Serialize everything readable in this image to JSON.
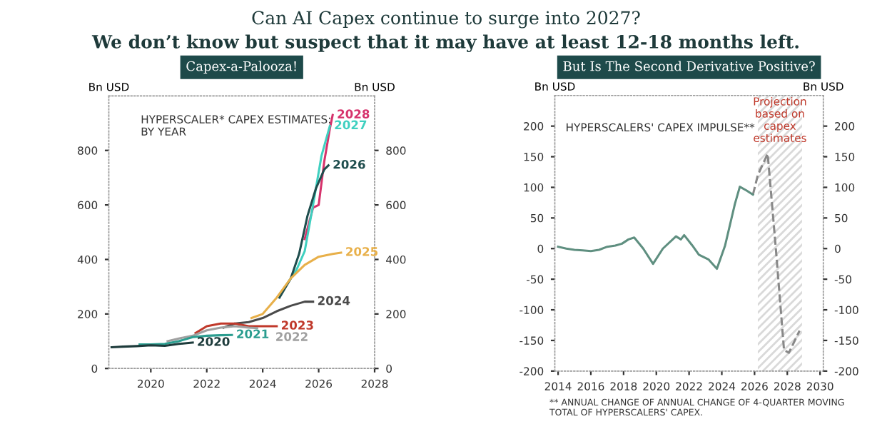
{
  "chart_data": [
    {
      "type": "line",
      "title": "Capex-a-Palooza!",
      "ylabel": "Bn USD",
      "y2label": "Bn USD",
      "xlim": [
        2018.5,
        2028
      ],
      "xticks": [
        2020,
        2022,
        2024,
        2026,
        2028
      ],
      "ylim": [
        0,
        1000
      ],
      "yticks": [
        0,
        200,
        400,
        600,
        800
      ],
      "y2lim": [
        0,
        1000
      ],
      "y2ticks": [
        0,
        200,
        400,
        600,
        800
      ],
      "grid": false,
      "legend": false,
      "annotations": [
        "Can AI Capex continue to surge into 2027?",
        "We don’t know but suspect that it may have at least 12-18 months left.",
        "HYPERSCALER* CAPEX ESTIMATES:\nBY YEAR"
      ],
      "series": [
        {
          "name": "2020",
          "color": "#1d3b3b",
          "x": [
            2018.6,
            2019,
            2019.5,
            2020,
            2020.5,
            2021,
            2021.5
          ],
          "values": [
            78,
            80,
            82,
            85,
            83,
            90,
            95
          ]
        },
        {
          "name": "2021",
          "color": "#2a9d8f",
          "x": [
            2019.6,
            2020,
            2020.5,
            2021,
            2021.5,
            2022,
            2022.5,
            2022.9
          ],
          "values": [
            88,
            88,
            90,
            100,
            115,
            120,
            122,
            123
          ]
        },
        {
          "name": "2022",
          "color": "#a0a0a0",
          "x": [
            2020.6,
            2021,
            2021.5,
            2022,
            2022.5,
            2023,
            2023.5,
            2023.8
          ],
          "values": [
            100,
            110,
            120,
            140,
            150,
            155,
            150,
            148
          ]
        },
        {
          "name": "2023",
          "color": "#c0392b",
          "x": [
            2021.6,
            2022,
            2022.5,
            2023,
            2023.5,
            2024,
            2024.5
          ],
          "values": [
            130,
            155,
            165,
            165,
            155,
            155,
            155
          ]
        },
        {
          "name": "2024",
          "color": "#4a4a4a",
          "x": [
            2022.6,
            2023,
            2023.5,
            2024,
            2024.5,
            2025,
            2025.5,
            2025.8
          ],
          "values": [
            150,
            165,
            170,
            185,
            210,
            230,
            245,
            245
          ]
        },
        {
          "name": "2025",
          "color": "#e8b04a",
          "x": [
            2023.6,
            2024,
            2024.5,
            2025,
            2025.5,
            2026,
            2026.5,
            2026.8
          ],
          "values": [
            185,
            200,
            260,
            330,
            380,
            410,
            420,
            425
          ]
        },
        {
          "name": "2026",
          "color": "#1f4e4e",
          "x": [
            2024.6,
            2025,
            2025.3,
            2025.6,
            2025.9,
            2026.2,
            2026.35
          ],
          "values": [
            260,
            330,
            420,
            560,
            660,
            730,
            745
          ]
        },
        {
          "name": "2027",
          "color": "#3fd0c0",
          "x": [
            2024.8,
            2025.2,
            2025.5,
            2025.8,
            2026.1,
            2026.4
          ],
          "values": [
            300,
            360,
            430,
            600,
            780,
            890
          ]
        },
        {
          "name": "2028",
          "color": "#d6336c",
          "x": [
            2025.5,
            2025.8,
            2026.0,
            2026.2,
            2026.4,
            2026.5
          ],
          "values": [
            475,
            590,
            600,
            760,
            880,
            930
          ]
        }
      ]
    },
    {
      "type": "line",
      "title": "But Is The Second Derivative Positive?",
      "ylabel": "Bn USD",
      "y2label": "Bn USD",
      "xlim": [
        2013.8,
        2030.2
      ],
      "xticks": [
        2014,
        2016,
        2018,
        2020,
        2022,
        2024,
        2026,
        2028,
        2030
      ],
      "ylim": [
        -200,
        250
      ],
      "yticks": [
        -200,
        -150,
        -100,
        -50,
        0,
        50,
        100,
        150,
        200
      ],
      "y2lim": [
        -200,
        250
      ],
      "y2ticks": [
        -200,
        -150,
        -100,
        -50,
        0,
        50,
        100,
        150,
        200
      ],
      "grid": false,
      "legend": false,
      "bands": [
        {
          "axis": "x",
          "from": 2026.2,
          "to": 2028.9,
          "label": "Projection\nbased on\ncapex\nestimates",
          "color": "#d9d9d9"
        }
      ],
      "annotations": [
        "HYPERSCALERS' CAPEX IMPULSE**",
        "** ANNUAL CHANGE OF ANNUAL CHANGE OF 4-QUARTER MOVING\nTOTAL OF HYPERSCALERS' CAPEX."
      ],
      "series": [
        {
          "color": "#5f8f80",
          "line_style": "solid",
          "x": [
            2014,
            2014.5,
            2015,
            2015.5,
            2016,
            2016.5,
            2017,
            2017.5,
            2017.9,
            2018.3,
            2018.65,
            2019.2,
            2019.8,
            2020.4,
            2021.2,
            2021.5,
            2021.7,
            2022.2,
            2022.6,
            2023.2,
            2023.7,
            2024.2,
            2024.8,
            2025.1,
            2025.5,
            2025.9
          ],
          "values": [
            3,
            0,
            -2,
            -3,
            -4,
            -2,
            3,
            5,
            8,
            15,
            18,
            0,
            -25,
            0,
            20,
            15,
            22,
            5,
            -10,
            -18,
            -33,
            5,
            73,
            101,
            95,
            88
          ]
        },
        {
          "color": "#888888",
          "line_style": "dashed",
          "x": [
            2025.9,
            2026.2,
            2026.8,
            2027.3,
            2027.8,
            2028.1,
            2028.75
          ],
          "values": [
            88,
            120,
            155,
            0,
            -166,
            -170,
            -134
          ]
        }
      ]
    }
  ]
}
